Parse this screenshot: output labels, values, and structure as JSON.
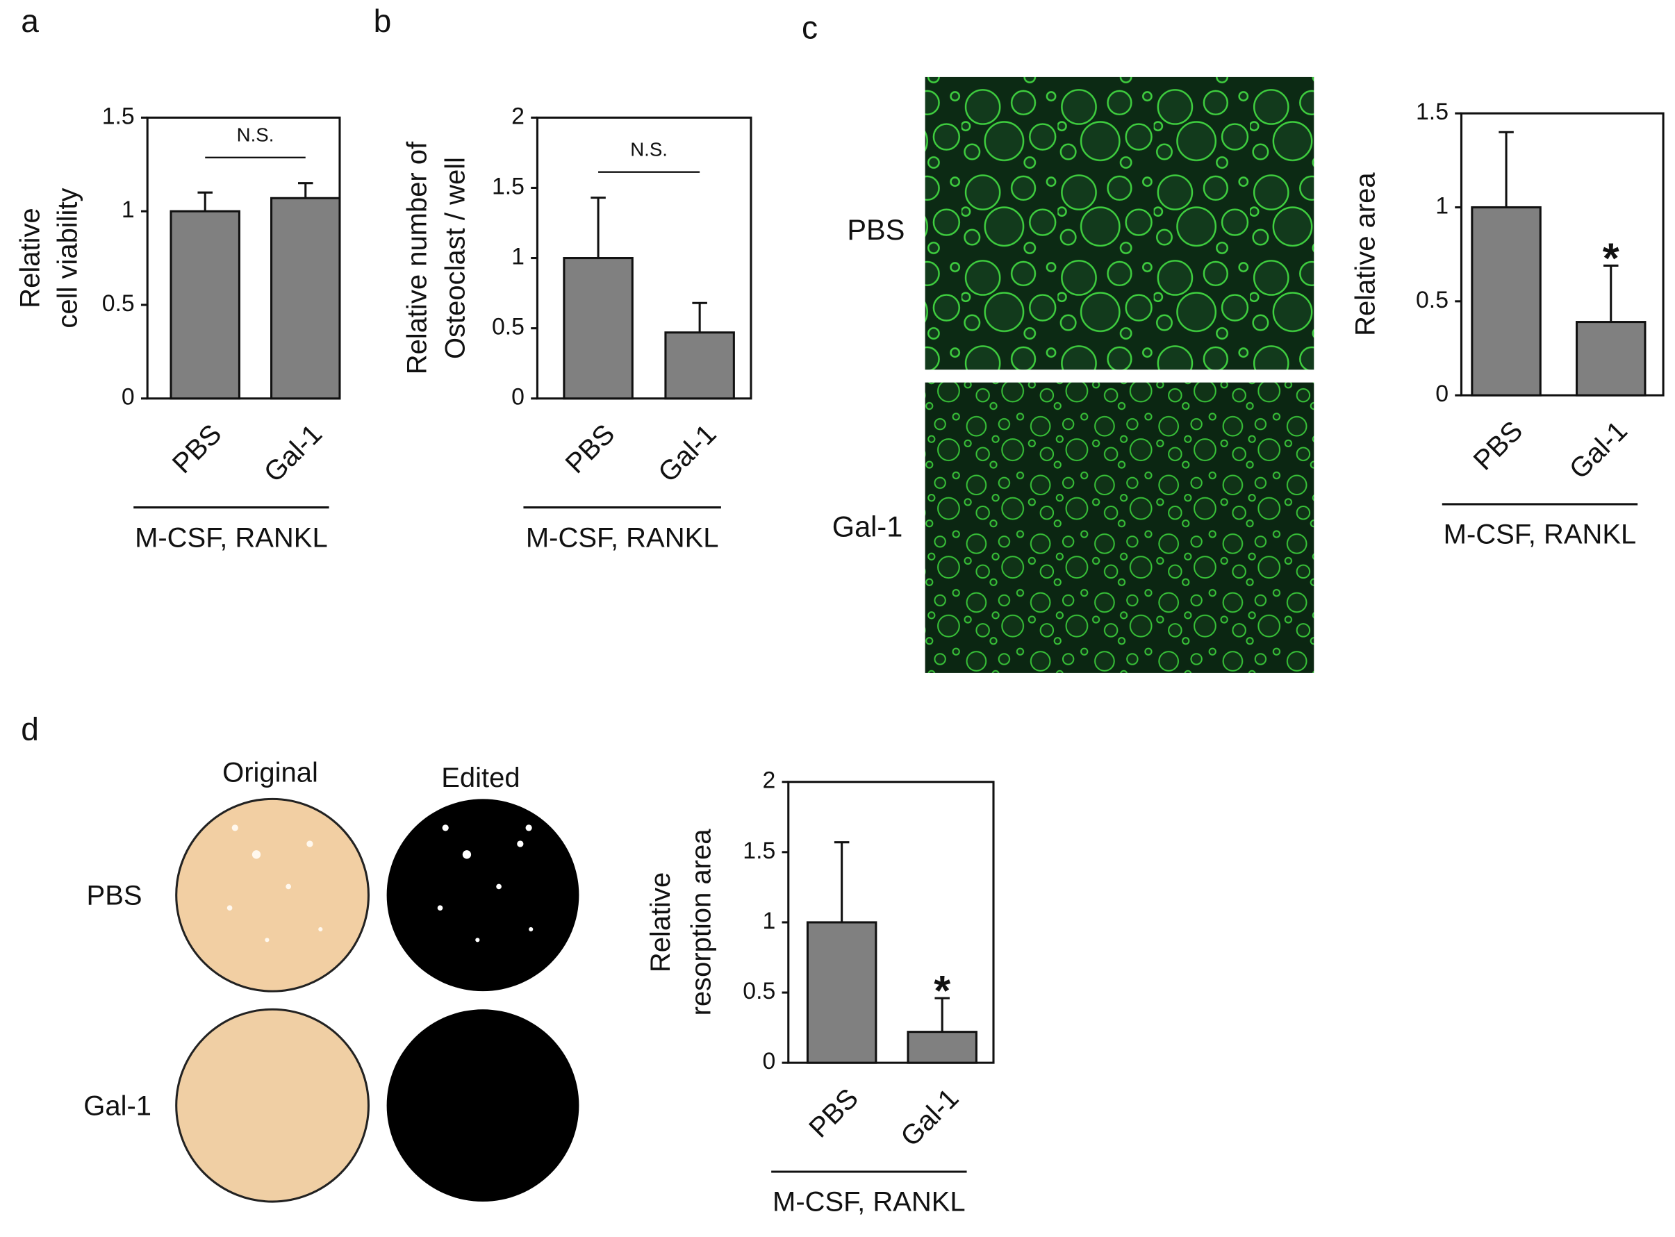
{
  "panel_labels": [
    "a",
    "b",
    "c",
    "d"
  ],
  "images": {
    "c": {
      "row_labels": [
        "PBS",
        "Gal-1"
      ]
    },
    "d": {
      "column_labels": [
        "Original",
        "Edited"
      ],
      "row_labels": [
        "PBS",
        "Gal-1"
      ]
    }
  },
  "chart_data": [
    {
      "type": "bar",
      "ylabel": [
        "Relative",
        "cell viability"
      ],
      "categories": [
        "PBS",
        "Gal-1"
      ],
      "values": [
        1,
        1.07
      ],
      "errors": [
        0.1,
        0.08
      ],
      "color": "#808080",
      "ylim": [
        0,
        1.5
      ],
      "yticks": [
        0,
        0.5,
        1,
        1.5
      ],
      "group_label": "M-CSF, RANKL",
      "annotations": [
        {
          "text": "N.S.",
          "between": [
            "PBS",
            "Gal-1"
          ]
        }
      ]
    },
    {
      "type": "bar",
      "ylabel": [
        "Relative number of",
        "Osteoclast / well"
      ],
      "categories": [
        "PBS",
        "Gal-1"
      ],
      "values": [
        1,
        0.47
      ],
      "errors": [
        0.43,
        0.21
      ],
      "color": "#808080",
      "ylim": [
        0,
        2
      ],
      "yticks": [
        0,
        0.5,
        1,
        1.5,
        2
      ],
      "group_label": "M-CSF, RANKL",
      "annotations": [
        {
          "text": "N.S.",
          "between": [
            "PBS",
            "Gal-1"
          ]
        }
      ]
    },
    {
      "type": "bar",
      "ylabel": [
        "Relative  area"
      ],
      "categories": [
        "PBS",
        "Gal-1"
      ],
      "values": [
        1,
        0.39
      ],
      "errors": [
        0.4,
        0.3
      ],
      "color": "#808080",
      "ylim": [
        0,
        1.5
      ],
      "yticks": [
        0,
        0.5,
        1,
        1.5
      ],
      "group_label": "M-CSF, RANKL",
      "annotations": [
        {
          "text": "*",
          "over": "Gal-1"
        }
      ]
    },
    {
      "type": "bar",
      "ylabel": [
        "Relative",
        "resorption area"
      ],
      "categories": [
        "PBS",
        "Gal-1"
      ],
      "values": [
        1,
        0.22
      ],
      "errors": [
        0.57,
        0.24
      ],
      "color": "#808080",
      "ylim": [
        0,
        2
      ],
      "yticks": [
        0,
        0.5,
        1,
        1.5,
        2
      ],
      "group_label": "M-CSF, RANKL",
      "annotations": [
        {
          "text": "*",
          "over": "Gal-1"
        }
      ]
    }
  ]
}
